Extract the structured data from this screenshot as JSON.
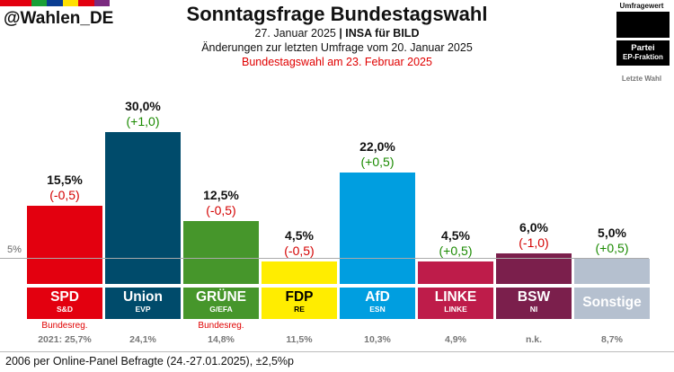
{
  "header": {
    "handle": "@Wahlen_DE",
    "title": "Sonntagsfrage Bundestagswahl",
    "date_prefix": "27. Januar 2025 ",
    "separator": "|",
    "institute": " INSA für BILD",
    "change_note": "Änderungen zur letzten Umfrage vom 20. Januar 2025",
    "election_note": "Bundestagswahl am 23. Februar 2025",
    "flag_colors": [
      "#e3000f",
      "#e3000f",
      "#1aa037",
      "#0a3d91",
      "#ffe000",
      "#e3000f",
      "#7b2a80"
    ]
  },
  "legend": {
    "value_label": "Umfragewert",
    "party_label": "Partei",
    "group_label": "EP-Fraktion",
    "last_label": "Letzte Wahl"
  },
  "threshold_label": "5%",
  "chart_data": {
    "type": "bar",
    "title": "Sonntagsfrage Bundestagswahl",
    "ylabel": "",
    "ylim": [
      0,
      30
    ],
    "threshold": 5,
    "categories": [
      "SPD",
      "Union",
      "GRÜNE",
      "FDP",
      "AfD",
      "LINKE",
      "BSW",
      "Sonstige"
    ],
    "values": [
      15.5,
      30.0,
      12.5,
      4.5,
      22.0,
      4.5,
      6.0,
      5.0
    ],
    "value_labels": [
      "15,5%",
      "30,0%",
      "12,5%",
      "4,5%",
      "22,0%",
      "4,5%",
      "6,0%",
      "5,0%"
    ],
    "changes": [
      -0.5,
      1.0,
      -0.5,
      -0.5,
      0.5,
      0.5,
      -1.0,
      0.5
    ],
    "change_labels": [
      "(-0,5)",
      "(+1,0)",
      "(-0,5)",
      "(-0,5)",
      "(+0,5)",
      "(+0,5)",
      "(-1,0)",
      "(+0,5)"
    ],
    "ep_groups": [
      "S&D",
      "EVP",
      "G/EFA",
      "RE",
      "ESN",
      "LINKE",
      "NI",
      ""
    ],
    "government": [
      "Bundesreg.",
      "",
      "Bundesreg.",
      "",
      "",
      "",
      "",
      ""
    ],
    "last_election": [
      "2021: 25,7%",
      "24,1%",
      "14,8%",
      "11,5%",
      "10,3%",
      "4,9%",
      "n.k.",
      "8,7%"
    ],
    "bar_colors": [
      "#e3000f",
      "#004b6b",
      "#46962b",
      "#ffed00",
      "#009ee0",
      "#be1c4a",
      "#7b1f4c",
      "#b5c0cf"
    ],
    "label_colors": [
      "#e3000f",
      "#004b6b",
      "#46962b",
      "#ffed00",
      "#009ee0",
      "#be1c4a",
      "#7b1f4c",
      "#b5c0cf"
    ],
    "label_text_colors": [
      "#ffffff",
      "#ffffff",
      "#ffffff",
      "#000000",
      "#ffffff",
      "#ffffff",
      "#ffffff",
      "#ffffff"
    ],
    "positive_color": "#1a8a00",
    "negative_color": "#d40000"
  },
  "footer": "2006 per Online-Panel Befragte (24.-27.01.2025), ±2,5%p"
}
